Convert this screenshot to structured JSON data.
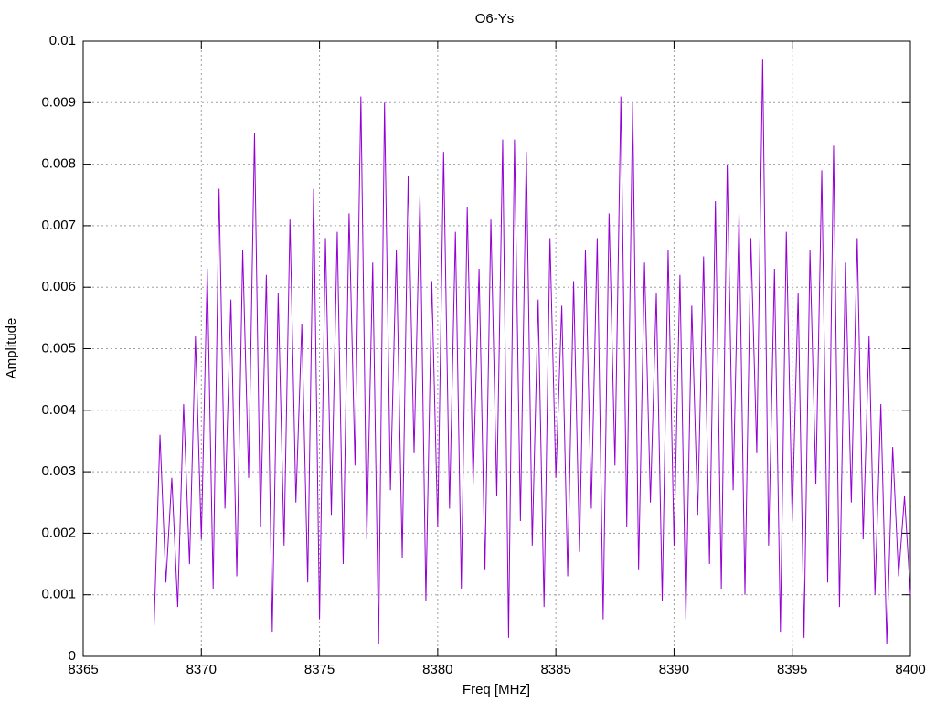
{
  "chart_data": {
    "type": "line",
    "title": "O6-Ys",
    "xlabel": "Freq [MHz]",
    "ylabel": "Amplitude",
    "x": [
      8368,
      8368.25,
      8368.5,
      8368.75,
      8369,
      8369.25,
      8369.5,
      8369.75,
      8370,
      8370.25,
      8370.5,
      8370.75,
      8371,
      8371.25,
      8371.5,
      8371.75,
      8372,
      8372.25,
      8372.5,
      8372.75,
      8373,
      8373.25,
      8373.5,
      8373.75,
      8374,
      8374.25,
      8374.5,
      8374.75,
      8375,
      8375.25,
      8375.5,
      8375.75,
      8376,
      8376.25,
      8376.5,
      8376.75,
      8377,
      8377.25,
      8377.5,
      8377.75,
      8378,
      8378.25,
      8378.5,
      8378.75,
      8379,
      8379.25,
      8379.5,
      8379.75,
      8380,
      8380.25,
      8380.5,
      8380.75,
      8381,
      8381.25,
      8381.5,
      8381.75,
      8382,
      8382.25,
      8382.5,
      8382.75,
      8383,
      8383.25,
      8383.5,
      8383.75,
      8384,
      8384.25,
      8384.5,
      8384.75,
      8385,
      8385.25,
      8385.5,
      8385.75,
      8386,
      8386.25,
      8386.5,
      8386.75,
      8387,
      8387.25,
      8387.5,
      8387.75,
      8388,
      8388.25,
      8388.5,
      8388.75,
      8389,
      8389.25,
      8389.5,
      8389.75,
      8390,
      8390.25,
      8390.5,
      8390.75,
      8391,
      8391.25,
      8391.5,
      8391.75,
      8392,
      8392.25,
      8392.5,
      8392.75,
      8393,
      8393.25,
      8393.5,
      8393.75,
      8394,
      8394.25,
      8394.5,
      8394.75,
      8395,
      8395.25,
      8395.5,
      8395.75,
      8396,
      8396.25,
      8396.5,
      8396.75,
      8397,
      8397.25,
      8397.5,
      8397.75,
      8398,
      8398.25,
      8398.5,
      8398.75,
      8399,
      8399.25,
      8399.5,
      8399.75,
      8400
    ],
    "series": [
      {
        "color": "#9400d3",
        "values": [
          0.0005,
          0.0036,
          0.0012,
          0.0029,
          0.0008,
          0.0041,
          0.0015,
          0.0052,
          0.0019,
          0.0063,
          0.0011,
          0.0076,
          0.0024,
          0.0058,
          0.0013,
          0.0066,
          0.0029,
          0.0085,
          0.0021,
          0.0062,
          0.0004,
          0.0059,
          0.0018,
          0.0071,
          0.0025,
          0.0054,
          0.0012,
          0.0076,
          0.0006,
          0.0068,
          0.0023,
          0.0069,
          0.0015,
          0.0072,
          0.0031,
          0.0091,
          0.0019,
          0.0064,
          0.0002,
          0.009,
          0.0027,
          0.0066,
          0.0016,
          0.0078,
          0.0033,
          0.0075,
          0.0009,
          0.0061,
          0.0021,
          0.0082,
          0.0024,
          0.0069,
          0.0011,
          0.0073,
          0.0028,
          0.0063,
          0.0014,
          0.0071,
          0.0026,
          0.0084,
          0.0003,
          0.0084,
          0.0022,
          0.0082,
          0.0018,
          0.0058,
          0.0008,
          0.0068,
          0.0029,
          0.0057,
          0.0013,
          0.0061,
          0.0017,
          0.0066,
          0.0024,
          0.0068,
          0.0006,
          0.0072,
          0.0031,
          0.0091,
          0.0021,
          0.009,
          0.0014,
          0.0064,
          0.0025,
          0.0059,
          0.0009,
          0.0066,
          0.0018,
          0.0062,
          0.0006,
          0.0057,
          0.0023,
          0.0065,
          0.0015,
          0.0074,
          0.0011,
          0.008,
          0.0027,
          0.0072,
          0.001,
          0.0068,
          0.0033,
          0.0097,
          0.0018,
          0.0063,
          0.0004,
          0.0069,
          0.0022,
          0.0059,
          0.0003,
          0.0066,
          0.0028,
          0.0079,
          0.0012,
          0.0083,
          0.0008,
          0.0064,
          0.0025,
          0.0068,
          0.0019,
          0.0052,
          0.001,
          0.0041,
          0.0002,
          0.0034,
          0.0013,
          0.0026,
          0.001
        ]
      }
    ],
    "xlim": [
      8365,
      8400
    ],
    "xticks": [
      8365,
      8370,
      8375,
      8380,
      8385,
      8390,
      8395,
      8400
    ],
    "ylim": [
      0,
      0.01
    ],
    "yticks": [
      0,
      0.001,
      0.002,
      0.003,
      0.004,
      0.005,
      0.006,
      0.007,
      0.008,
      0.009,
      0.01
    ],
    "grid": true
  }
}
